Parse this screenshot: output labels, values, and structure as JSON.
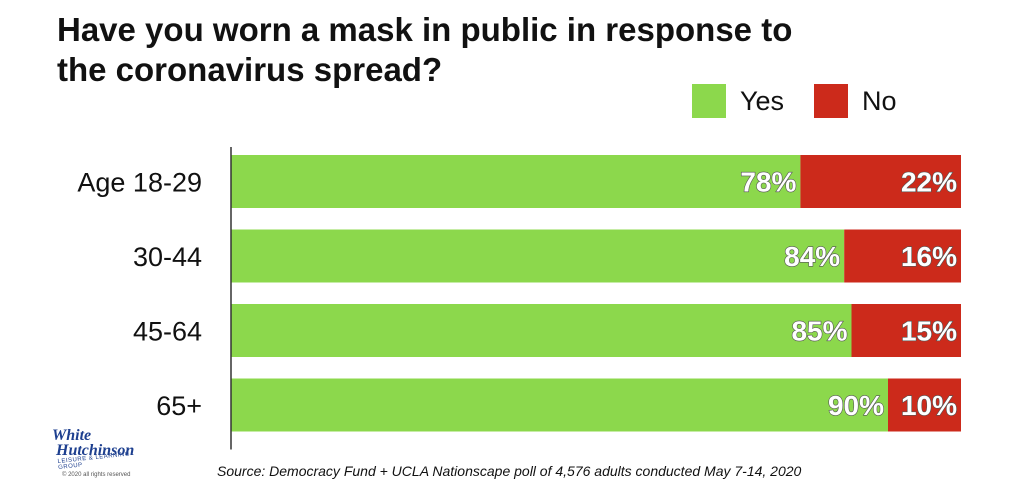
{
  "chart_data": {
    "type": "bar",
    "stacked": true,
    "orientation": "horizontal",
    "title": "Have you worn a mask in public in response to\nthe coronavirus spread?",
    "categories": [
      "Age 18-29",
      "30-44",
      "45-64",
      "65+"
    ],
    "series": [
      {
        "name": "Yes",
        "color": "#8cd84c",
        "values": [
          78,
          84,
          85,
          90
        ]
      },
      {
        "name": "No",
        "color": "#cc2a1b",
        "values": [
          22,
          16,
          15,
          10
        ]
      }
    ],
    "value_labels": [
      [
        "78%",
        "84%",
        "85%",
        "90%"
      ],
      [
        "22%",
        "16%",
        "15%",
        "10%"
      ]
    ],
    "xlim": [
      0,
      100
    ],
    "legend": "top-right",
    "grid": false
  },
  "source": "Source: Democracy Fund + UCLA Nationscape poll of 4,576 adults conducted May 7-14, 2020",
  "logo": {
    "line1": "White",
    "line2": "Hutchinson",
    "tagline": "LEISURE & LEARNING GROUP",
    "copyright": "© 2020 all rights reserved"
  }
}
